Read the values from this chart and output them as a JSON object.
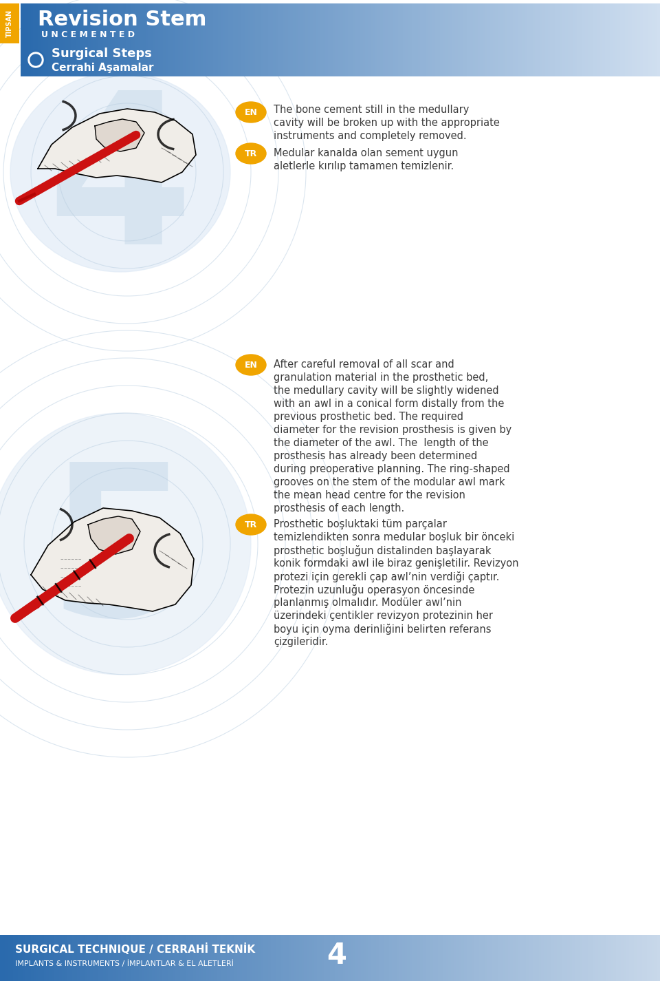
{
  "bg_color": "#ffffff",
  "header_blue": "#2a6aad",
  "header_gradient_end": "#d0dff0",
  "title_text": "Revision Stem",
  "subtitle_text": "U N C E M E N T E D",
  "tipsan_color": "#f0a500",
  "surgical_steps_text": "Surgical Steps",
  "cerrahi_asamalar_text": "Cerrahi Aşamalar",
  "en_badge_color": "#f0a500",
  "tr_badge_color": "#f0a500",
  "section1_en_lines": [
    "The bone cement still in the medullary",
    "cavity will be broken up with the appropriate",
    "instruments and completely removed."
  ],
  "section1_tr_lines": [
    "Medular kanalda olan sement uygun",
    "aletlerle kırılıp tamamen temizlenir."
  ],
  "section2_en_lines": [
    "After careful removal of all scar and",
    "granulation material in the prosthetic bed,",
    "the medullary cavity will be slightly widened",
    "with an awl in a conical form distally from the",
    "previous prosthetic bed. The required",
    "diameter for the revision prosthesis is given by",
    "the diameter of the awl. The  length of the",
    "prosthesis has already been determined",
    "during preoperative planning. The ring-shaped",
    "grooves on the stem of the modular awl mark",
    "the mean head centre for the revision",
    "prosthesis of each length."
  ],
  "section2_tr_lines": [
    "Prosthetic boşluktaki tüm parçalar",
    "temizlendikten sonra medular boşluk bir önceki",
    "prosthetic boşluğun distalinden başlayarak",
    "konik formdaki awl ile biraz genişletilir. Revizyon",
    "protezi için gerekli çap awl’nin verdiği çaptır.",
    "Protezin uzunluğu operasyon öncesinde",
    "planlanmış olmalıdır. Modüler awl’nin",
    "üzerindeki çentikler revizyon protezinin her",
    "boyu için oyma derinliğini belirten referans",
    "çizgileridir."
  ],
  "footer_text1": "SURGICAL TECHNIQUE / CERRAHİ TEKNİK",
  "footer_text2": "IMPLANTS & INSTRUMENTS / İMPLANTLAR & EL ALETLERİ",
  "page_number": "4",
  "footer_bg": "#2a6aad",
  "footer_gradient_end": "#c8d8ea",
  "text_dark": "#3a3a3a",
  "watermark_color": "#d5e3f0",
  "circle_color": "#b8cde0",
  "ellipse_color": "#dce8f5"
}
